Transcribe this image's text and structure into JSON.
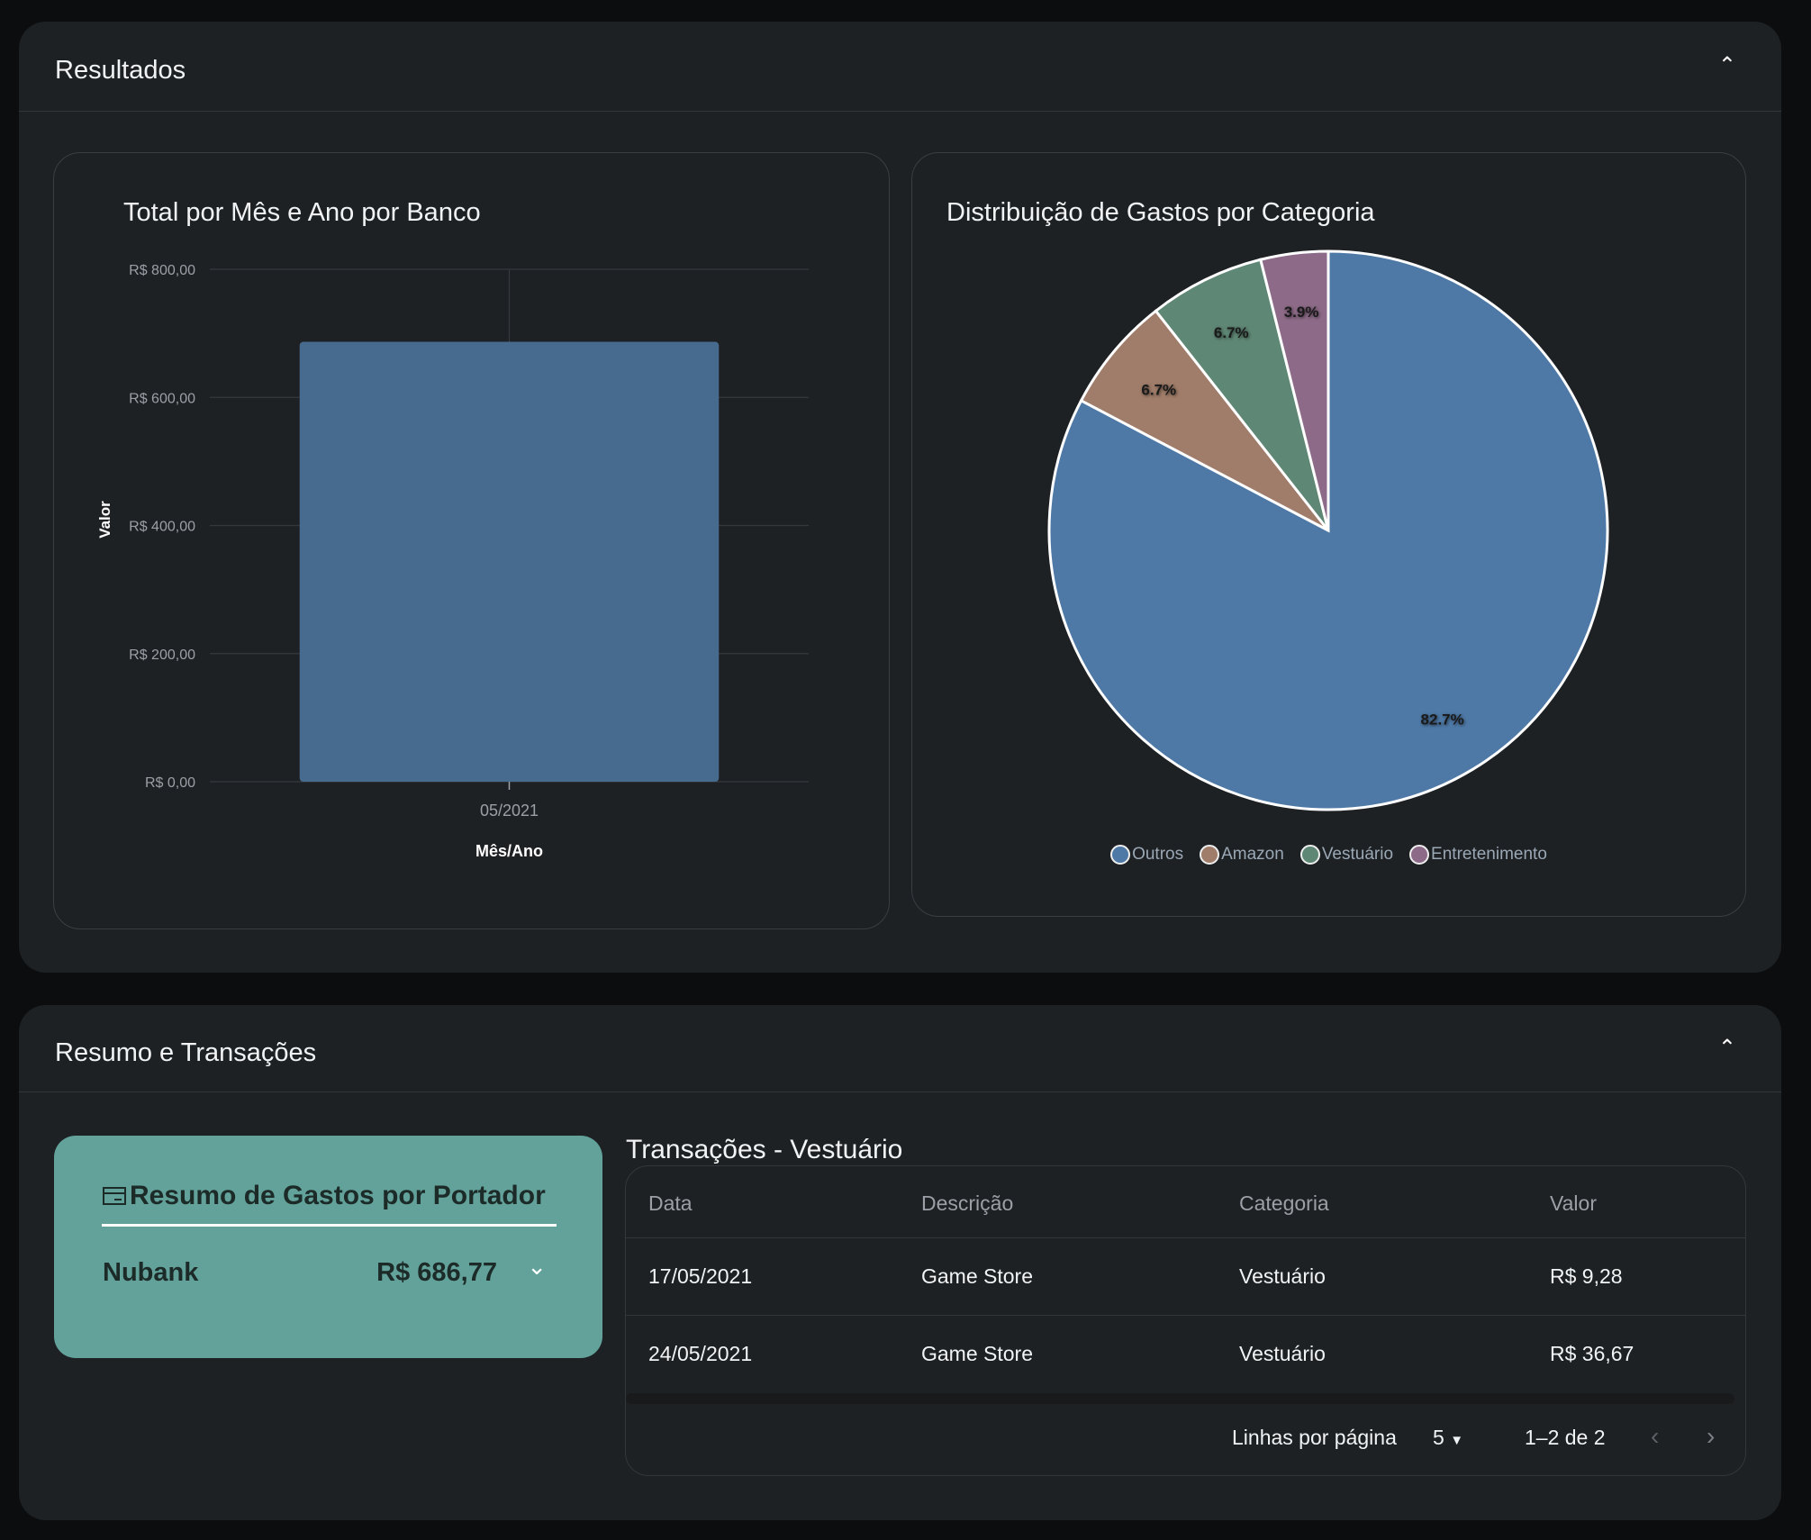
{
  "results": {
    "title": "Resultados",
    "bar_panel_title": "Total por Mês e Ano por Banco",
    "pie_panel_title": "Distribuição de Gastos por Categoria"
  },
  "chart_data": [
    {
      "type": "bar",
      "categories": [
        "05/2021"
      ],
      "values": [
        686.77
      ],
      "xlabel": "Mês/Ano",
      "ylabel": "Valor",
      "ylim": [
        0,
        800
      ],
      "yticks": [
        "R$ 0,00",
        "R$ 200,00",
        "R$ 400,00",
        "R$ 600,00",
        "R$ 800,00"
      ],
      "ytick_values": [
        0,
        200,
        400,
        600,
        800
      ],
      "grid": true,
      "color": "#466b8f"
    },
    {
      "type": "pie",
      "labels": [
        "Outros",
        "Amazon",
        "Vestuário",
        "Entretenimento"
      ],
      "values": [
        82.7,
        6.7,
        6.7,
        3.9
      ],
      "data_labels": [
        "82.7%",
        "6.7%",
        "6.7%",
        "3.9%"
      ],
      "colors": [
        "#4e79a6",
        "#a07d6a",
        "#5f8775",
        "#8d6b88"
      ],
      "legend": "bottom"
    }
  ],
  "summary": {
    "title": "Resumo e Transações",
    "card_title": "Resumo de Gastos por Portador",
    "holder": "Nubank",
    "amount": "R$ 686,77"
  },
  "transactions": {
    "title": "Transações - Vestuário",
    "columns": [
      "Data",
      "Descrição",
      "Categoria",
      "Valor"
    ],
    "rows": [
      [
        "17/05/2021",
        "Game Store",
        "Vestuário",
        "R$ 9,28"
      ],
      [
        "24/05/2021",
        "Game Store",
        "Vestuário",
        "R$ 36,67"
      ]
    ],
    "rows_per_page_label": "Linhas por página",
    "rows_per_page": "5",
    "range": "1–2 de 2"
  }
}
